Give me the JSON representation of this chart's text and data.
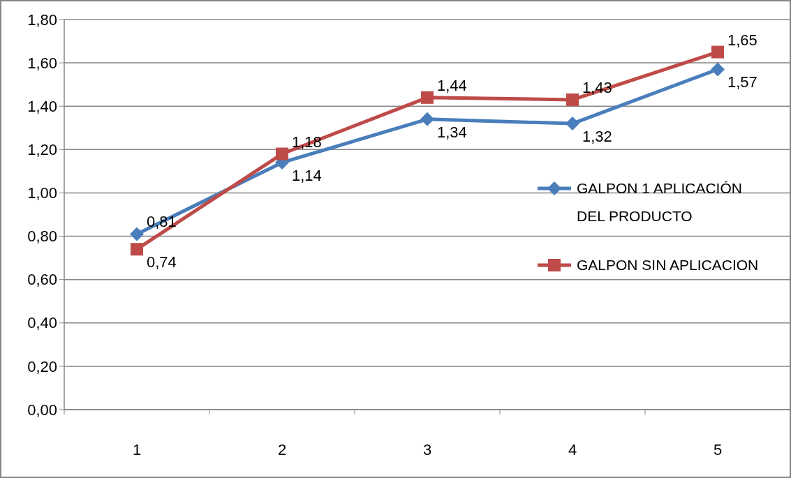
{
  "chart_data": {
    "type": "line",
    "categories": [
      "1",
      "2",
      "3",
      "4",
      "5"
    ],
    "ylim": [
      0,
      1.8
    ],
    "yticks": [
      {
        "value": 0,
        "label": "0,00"
      },
      {
        "value": 0.2,
        "label": "0,20"
      },
      {
        "value": 0.4,
        "label": "0,40"
      },
      {
        "value": 0.6,
        "label": "0,60"
      },
      {
        "value": 0.8,
        "label": "0,80"
      },
      {
        "value": 1,
        "label": "1,00"
      },
      {
        "value": 1.2,
        "label": "1,20"
      },
      {
        "value": 1.4,
        "label": "1,40"
      },
      {
        "value": 1.6,
        "label": "1,60"
      },
      {
        "value": 1.8,
        "label": "1,80"
      }
    ],
    "grid": "y",
    "legend": "right",
    "series": [
      {
        "name": "GALPON 1 APLICACIÓN DEL PRODUCTO",
        "color": "#4a7ebb",
        "marker": "diamond",
        "values": [
          0.81,
          1.14,
          1.34,
          1.32,
          1.57
        ],
        "value_labels": [
          "0,81",
          "1,14",
          "1,34",
          "1,32",
          "1,57"
        ]
      },
      {
        "name": "GALPON SIN APLICACION",
        "color": "#be4b48",
        "marker": "square",
        "values": [
          0.74,
          1.18,
          1.44,
          1.43,
          1.65
        ],
        "value_labels": [
          "0,74",
          "1,18",
          "1,44",
          "1,43",
          "1,65"
        ]
      }
    ]
  }
}
